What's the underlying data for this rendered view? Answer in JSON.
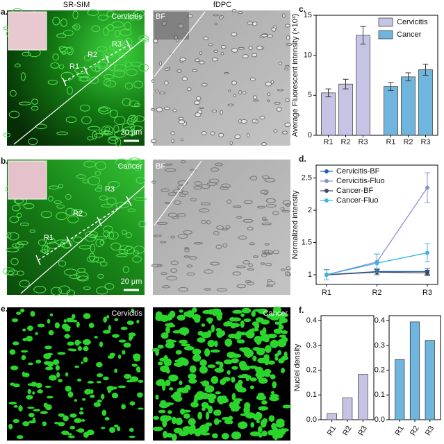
{
  "panels": {
    "a": {
      "label": "a.",
      "col1": "SR-SIM",
      "col2": "fDPC",
      "tissue": "Cervicitis",
      "bf": "BF",
      "scale": "20 μm",
      "regions": [
        "R1",
        "R2",
        "R3"
      ]
    },
    "b": {
      "label": "b.",
      "tissue": "Cancer",
      "bf": "BF",
      "scale": "20 μm",
      "regions": [
        "R1",
        "R2",
        "R3"
      ]
    },
    "e": {
      "label": "e.",
      "left": "Cervicitis",
      "right": "Cancer"
    }
  },
  "chart_data": [
    {
      "type": "bar",
      "panel_label": "c.",
      "ylabel": "Average Fluorescent intensity (×10³)",
      "categories": [
        "R1",
        "R2",
        "R3"
      ],
      "ylim": [
        0,
        15
      ],
      "yticks": [
        0,
        5,
        10,
        15
      ],
      "legend": "top-right",
      "series": [
        {
          "name": "Cervicitis",
          "color": "#c6c4e4",
          "values": [
            5.3,
            6.4,
            12.5
          ],
          "errors": [
            0.5,
            0.6,
            1.1
          ]
        },
        {
          "name": "Cancer",
          "color": "#6fb5de",
          "values": [
            6.1,
            7.3,
            8.2
          ],
          "errors": [
            0.5,
            0.5,
            0.7
          ]
        }
      ]
    },
    {
      "type": "line",
      "panel_label": "d.",
      "ylabel": "Normalized intensity",
      "categories": [
        "R1",
        "R2",
        "R3"
      ],
      "ylim": [
        0.85,
        2.7
      ],
      "yticks": [
        1,
        1.5,
        2,
        2.5
      ],
      "legend": "top-left",
      "series": [
        {
          "name": "Cervicitis-BF",
          "color": "#1f5fbf",
          "values": [
            1,
            1.05,
            1.05
          ],
          "errors": [
            0.08,
            0.05,
            0.05
          ]
        },
        {
          "name": "Cervicitis-Fluo",
          "color": "#8a8fd0",
          "values": [
            1,
            1.2,
            2.35
          ],
          "errors": [
            0.08,
            0.12,
            0.23
          ]
        },
        {
          "name": "Cancer-BF",
          "color": "#404a5a",
          "values": [
            1,
            1.04,
            1.03
          ],
          "errors": [
            0.08,
            0.04,
            0.04
          ]
        },
        {
          "name": "Cancer-Fluo",
          "color": "#3cb4e6",
          "values": [
            1,
            1.18,
            1.34
          ],
          "errors": [
            0.08,
            0.14,
            0.14
          ]
        }
      ]
    },
    {
      "type": "bar",
      "panel_label": "f.",
      "ylabel": "Nuclei density",
      "categories": [
        "R1",
        "R2",
        "R3"
      ],
      "ylim": [
        0,
        0.42
      ],
      "yticks": [
        {
          "value": 0,
          "label": "0.0"
        },
        0.1,
        0.2,
        0.3,
        0.4
      ],
      "series": [
        {
          "color": "#c6c4e4",
          "values": [
            0.025,
            0.088,
            0.183
          ]
        }
      ]
    },
    {
      "type": "bar",
      "categories": [
        "R1",
        "R2",
        "R3"
      ],
      "ylim": [
        0,
        0.42
      ],
      "yticks": [
        {
          "value": 0,
          "label": "0.0"
        },
        0.1,
        0.2,
        0.3,
        0.4
      ],
      "series": [
        {
          "color": "#6fb5de",
          "values": [
            0.243,
            0.395,
            0.32
          ]
        }
      ]
    }
  ]
}
